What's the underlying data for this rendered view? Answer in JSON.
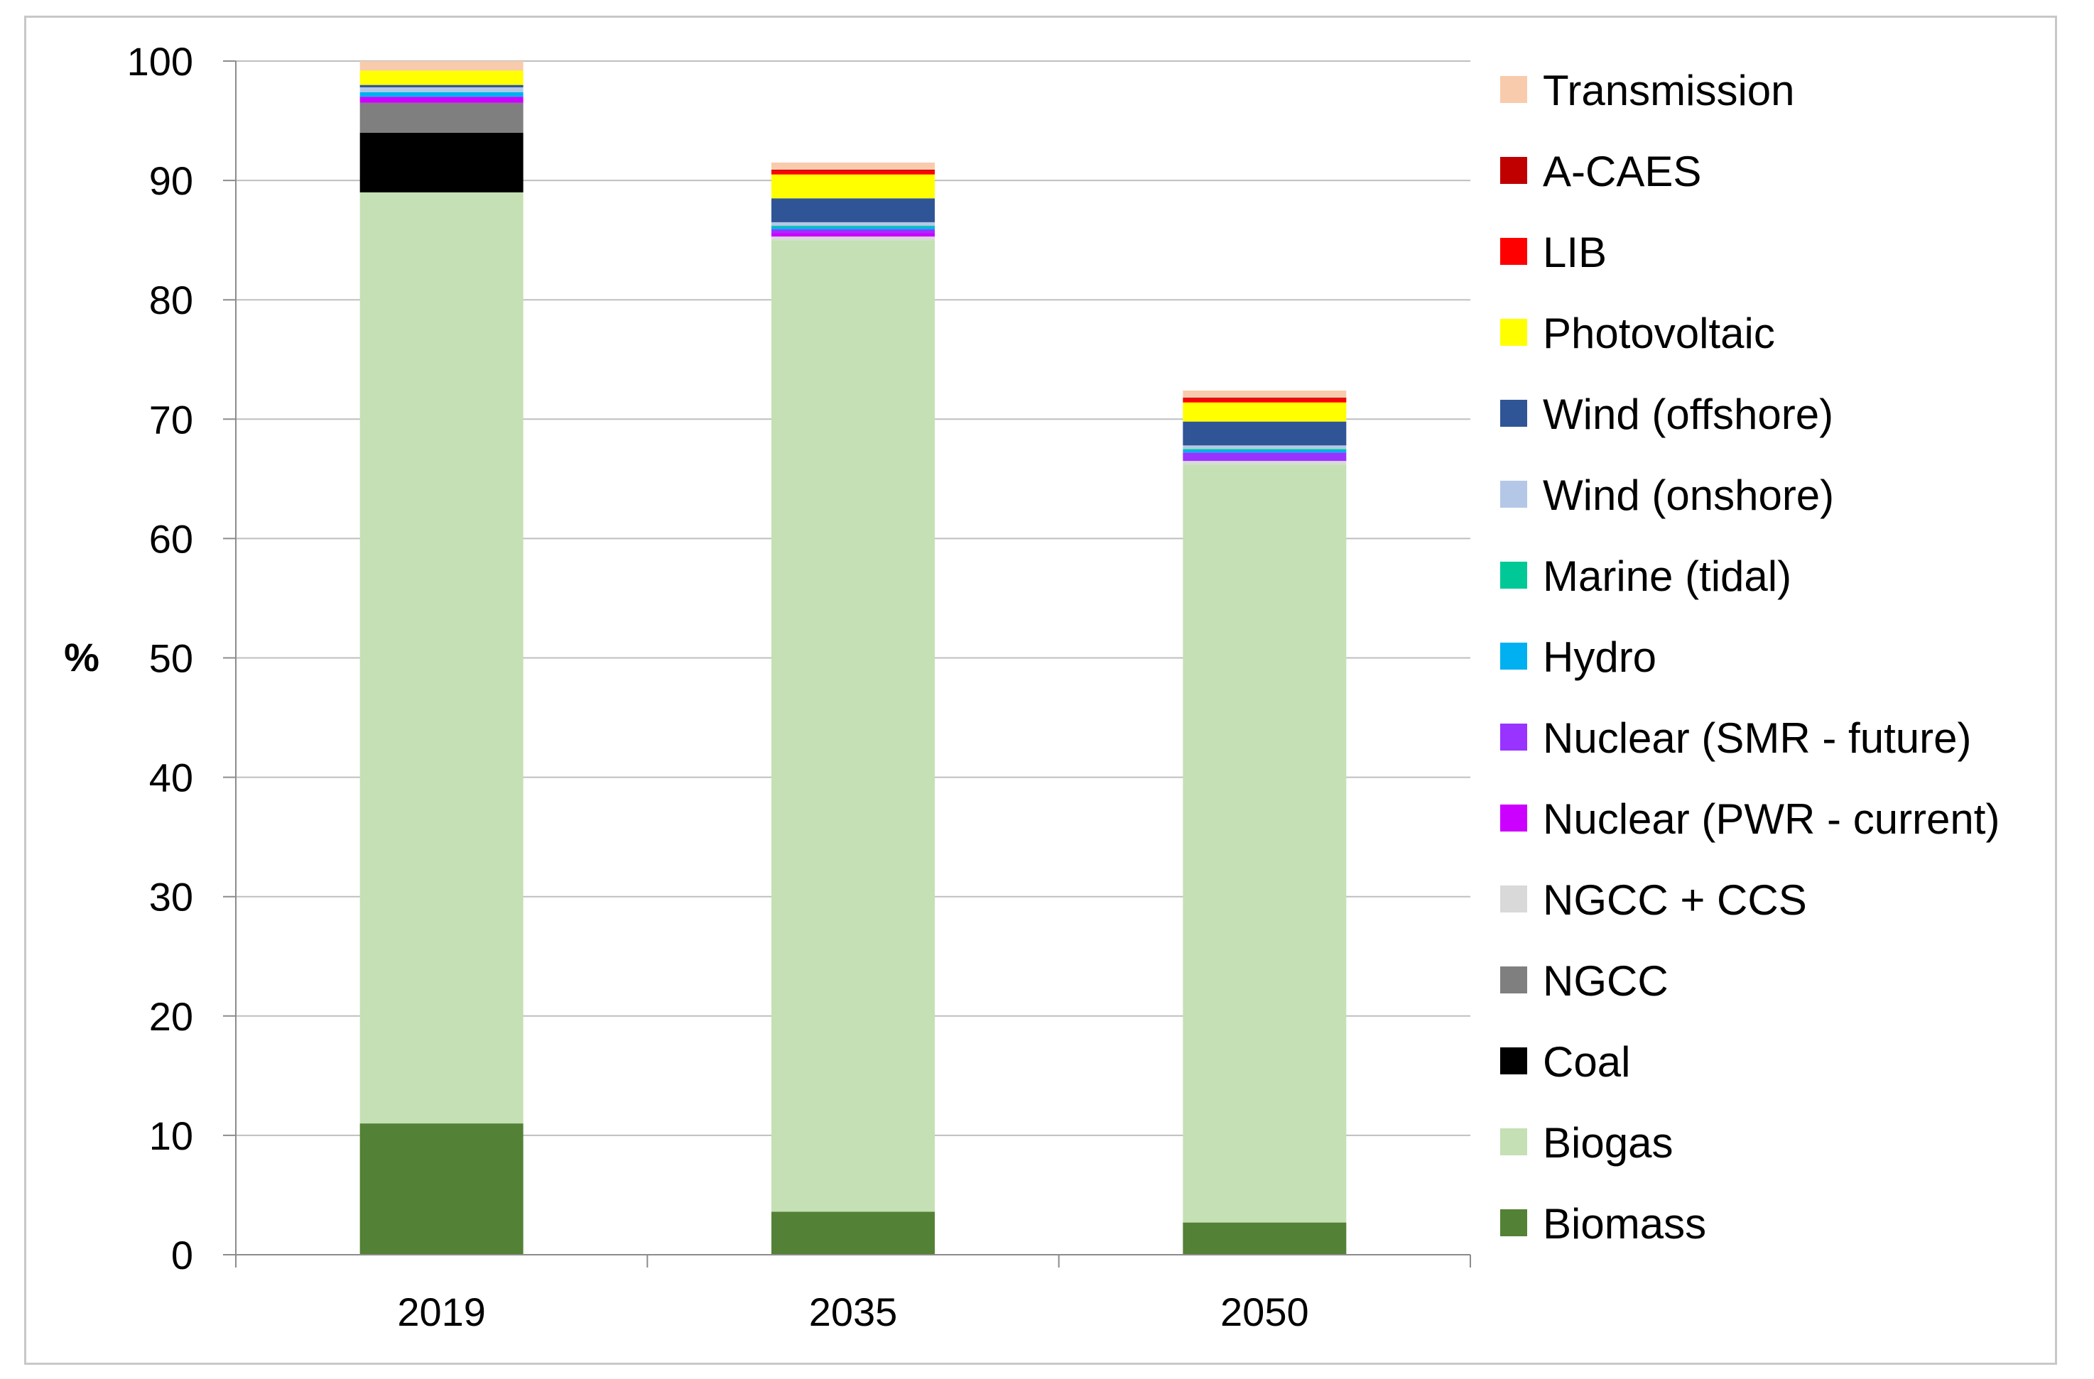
{
  "chart_data": {
    "type": "bar",
    "stacked": true,
    "title": "",
    "xlabel": "",
    "ylabel": "%",
    "ylim": [
      0,
      100
    ],
    "yticks": [
      "0",
      "10",
      "20",
      "30",
      "40",
      "50",
      "60",
      "70",
      "80",
      "90",
      "100"
    ],
    "grid": true,
    "legend_position": "right",
    "categories": [
      "2019",
      "2035",
      "2050"
    ],
    "series": [
      {
        "name": "Biomass",
        "color": "#538135",
        "values": [
          11.0,
          3.6,
          2.7
        ]
      },
      {
        "name": "Biogas",
        "color": "#c5e0b4",
        "values": [
          78.0,
          81.4,
          63.5
        ]
      },
      {
        "name": "Coal",
        "color": "#000000",
        "values": [
          5.0,
          0.0,
          0.0
        ]
      },
      {
        "name": "NGCC",
        "color": "#7f7f7f",
        "values": [
          2.5,
          0.0,
          0.0
        ]
      },
      {
        "name": "NGCC + CCS",
        "color": "#d9d9d9",
        "values": [
          0.0,
          0.3,
          0.3
        ]
      },
      {
        "name": "Nuclear (PWR - current)",
        "color": "#cc00ff",
        "values": [
          0.5,
          0.3,
          0.0
        ]
      },
      {
        "name": "Nuclear (SMR - future)",
        "color": "#9933ff",
        "values": [
          0.0,
          0.3,
          0.7
        ]
      },
      {
        "name": "Hydro",
        "color": "#00b0f0",
        "values": [
          0.4,
          0.2,
          0.2
        ]
      },
      {
        "name": "Marine (tidal)",
        "color": "#00c896",
        "values": [
          0.0,
          0.1,
          0.1
        ]
      },
      {
        "name": "Wind (onshore)",
        "color": "#b4c7e7",
        "values": [
          0.4,
          0.3,
          0.3
        ]
      },
      {
        "name": "Wind (offshore)",
        "color": "#2f5597",
        "values": [
          0.2,
          2.0,
          2.0
        ]
      },
      {
        "name": "Photovoltaic",
        "color": "#ffff00",
        "values": [
          1.2,
          2.0,
          1.6
        ]
      },
      {
        "name": "LIB",
        "color": "#ff0000",
        "values": [
          0.0,
          0.3,
          0.3
        ]
      },
      {
        "name": "A-CAES",
        "color": "#c00000",
        "values": [
          0.0,
          0.1,
          0.1
        ]
      },
      {
        "name": "Transmission",
        "color": "#f8cbad",
        "values": [
          0.8,
          0.6,
          0.6
        ]
      }
    ]
  }
}
